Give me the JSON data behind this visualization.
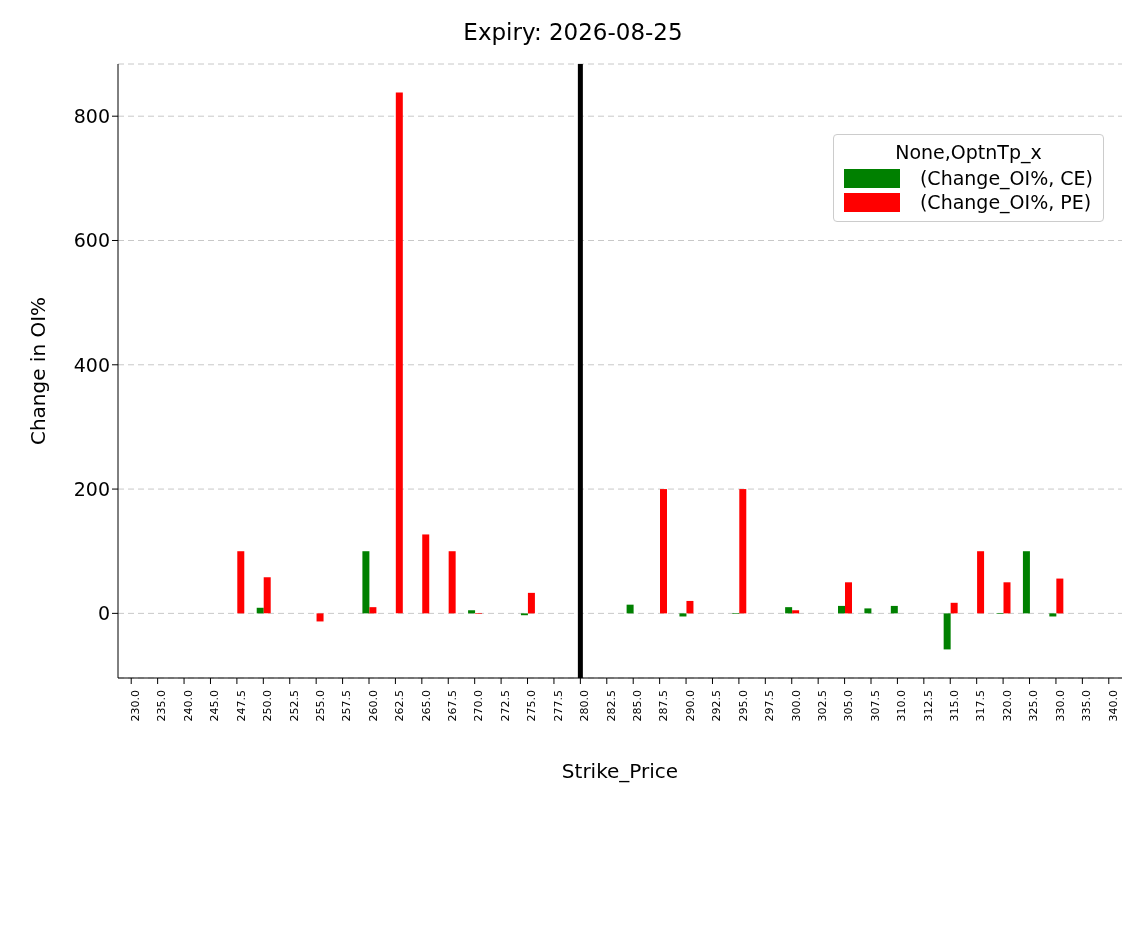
{
  "chart_data": {
    "type": "bar",
    "title": "Expiry: 2026-08-25",
    "xlabel": "Strike_Price",
    "ylabel": "Change in OI%",
    "legend_title": "None,OptnTp_x",
    "categories": [
      "230.0",
      "235.0",
      "240.0",
      "245.0",
      "247.5",
      "250.0",
      "252.5",
      "255.0",
      "257.5",
      "260.0",
      "262.5",
      "265.0",
      "267.5",
      "270.0",
      "272.5",
      "275.0",
      "277.5",
      "280.0",
      "282.5",
      "285.0",
      "287.5",
      "290.0",
      "292.5",
      "295.0",
      "297.5",
      "300.0",
      "302.5",
      "305.0",
      "307.5",
      "310.0",
      "312.5",
      "315.0",
      "317.5",
      "320.0",
      "325.0",
      "330.0",
      "335.0",
      "340.0"
    ],
    "series": [
      {
        "name": "(Change_OI%, CE)",
        "color": "#008000",
        "values": [
          null,
          null,
          null,
          null,
          null,
          9,
          null,
          null,
          null,
          100,
          null,
          null,
          null,
          5,
          null,
          -3,
          null,
          null,
          null,
          14,
          null,
          -5,
          null,
          -1,
          null,
          10,
          null,
          12,
          8,
          12,
          null,
          -58,
          null,
          -1,
          100,
          -5,
          null,
          null
        ]
      },
      {
        "name": "(Change_OI%, PE)",
        "color": "#ff0000",
        "values": [
          null,
          null,
          null,
          null,
          100,
          58,
          null,
          -13,
          null,
          10,
          838,
          127,
          100,
          -1,
          null,
          33,
          null,
          null,
          null,
          null,
          200,
          20,
          null,
          200,
          null,
          5,
          null,
          50,
          null,
          null,
          null,
          17,
          100,
          50,
          null,
          56,
          null,
          null
        ]
      }
    ],
    "ylim": [
      -104,
      884
    ],
    "yticks": [
      0,
      200,
      400,
      600,
      800
    ],
    "grid": "y",
    "legend": "top right",
    "ref_lines": [
      {
        "axis": "x",
        "value": "280.0",
        "color": "#000000"
      }
    ]
  }
}
